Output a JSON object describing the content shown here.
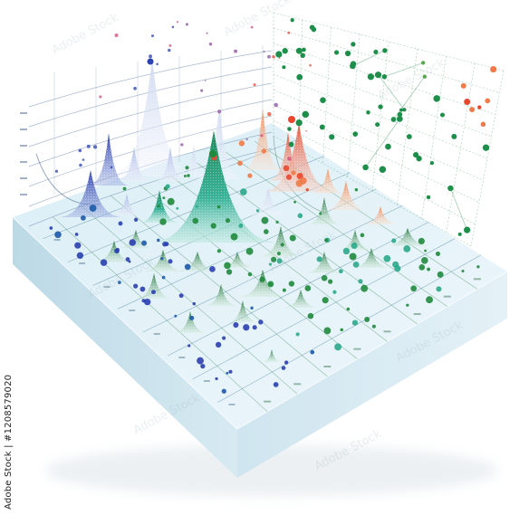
{
  "image": {
    "credit": "Adobe Stock | #1208579020",
    "watermark": "Adobe Stock",
    "palette": {
      "background": "#ffffff",
      "base_top": "#e3f2f8",
      "base_front": "#cfe6ee",
      "base_side": "#bfdbe6",
      "blue": "#2a3fb0",
      "teal": "#2aa98a",
      "green": "#1f8a3c",
      "red": "#e8472e",
      "gridline": "#9fb6c8"
    }
  }
}
